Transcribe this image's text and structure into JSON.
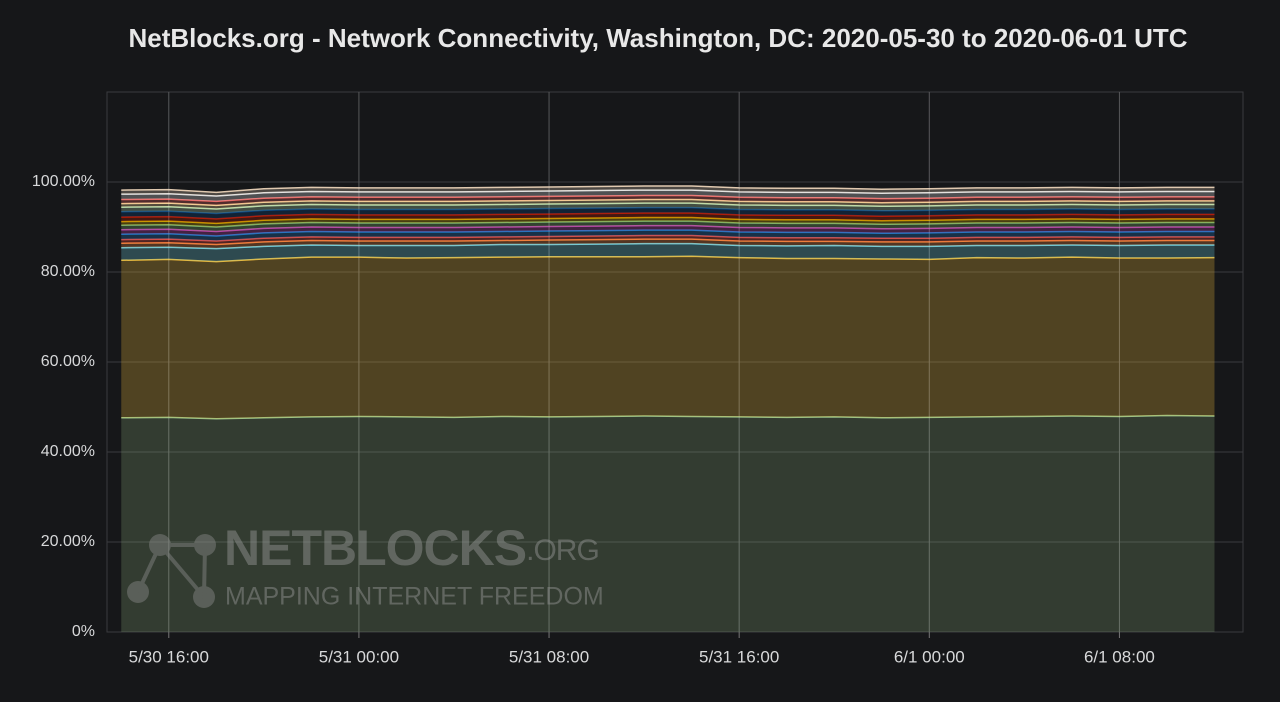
{
  "chart_data": {
    "type": "stacked_area",
    "title": "NetBlocks.org - Network Connectivity, Washington, DC: 2020-05-30 to 2020-06-01 UTC",
    "watermark": {
      "brand": "NETBLOCKS",
      "suffix": ".ORG",
      "tagline": "MAPPING INTERNET FREEDOM"
    },
    "x": [
      14,
      16,
      18,
      20,
      22,
      24,
      26,
      28,
      30,
      32,
      34,
      36,
      38,
      40,
      42,
      44,
      46,
      48,
      50,
      52,
      54,
      56,
      58,
      60
    ],
    "xlim": [
      13.4,
      61.2
    ],
    "xticks": [
      {
        "value": 16,
        "label": "5/30 16:00"
      },
      {
        "value": 24,
        "label": "5/31 00:00"
      },
      {
        "value": 32,
        "label": "5/31 08:00"
      },
      {
        "value": 40,
        "label": "5/31 16:00"
      },
      {
        "value": 48,
        "label": "6/1 00:00"
      },
      {
        "value": 56,
        "label": "6/1 08:00"
      }
    ],
    "ylim": [
      0,
      120
    ],
    "yticks": [
      {
        "value": 0,
        "label": "0%"
      },
      {
        "value": 20,
        "label": "20.00%"
      },
      {
        "value": 40,
        "label": "40.00%"
      },
      {
        "value": 60,
        "label": "60.00%"
      },
      {
        "value": 80,
        "label": "80.00%"
      },
      {
        "value": 100,
        "label": "100.00%"
      }
    ],
    "grid": true,
    "series": [
      {
        "color": "#9ac48a",
        "values": [
          47.6,
          47.7,
          47.4,
          47.6,
          47.8,
          47.9,
          47.8,
          47.7,
          47.9,
          47.8,
          47.9,
          48.0,
          47.9,
          47.8,
          47.7,
          47.8,
          47.6,
          47.7,
          47.8,
          47.9,
          48.0,
          47.9,
          48.1,
          48.0
        ]
      },
      {
        "color": "#eab839",
        "values": [
          35.0,
          35.1,
          34.9,
          35.3,
          35.5,
          35.4,
          35.3,
          35.5,
          35.4,
          35.6,
          35.5,
          35.4,
          35.6,
          35.4,
          35.3,
          35.2,
          35.3,
          35.1,
          35.4,
          35.2,
          35.3,
          35.2,
          35.0,
          35.2
        ]
      },
      {
        "color": "#6ed0e0",
        "values": [
          2.8,
          2.7,
          2.9,
          2.8,
          2.7,
          2.6,
          2.8,
          2.7,
          2.8,
          2.7,
          2.8,
          2.9,
          2.8,
          2.7,
          2.8,
          2.9,
          2.8,
          2.9,
          2.7,
          2.8,
          2.7,
          2.8,
          2.9,
          2.8
        ]
      },
      {
        "color": "#ef843c",
        "values": [
          1.0,
          1.0,
          0.9,
          1.0,
          1.0,
          1.0,
          1.0,
          1.0,
          0.9,
          1.0,
          1.0,
          1.0,
          1.0,
          1.0,
          1.0,
          0.9,
          1.0,
          1.0,
          1.0,
          1.0,
          1.0,
          1.0,
          1.0,
          1.0
        ]
      },
      {
        "color": "#e24d42",
        "values": [
          0.8,
          0.8,
          0.8,
          0.8,
          0.8,
          0.8,
          0.8,
          0.8,
          0.8,
          0.8,
          0.8,
          0.8,
          0.8,
          0.8,
          0.8,
          0.8,
          0.8,
          0.8,
          0.8,
          0.8,
          0.8,
          0.8,
          0.8,
          0.8
        ]
      },
      {
        "color": "#1f78c1",
        "values": [
          1.2,
          1.2,
          1.1,
          1.2,
          1.2,
          1.2,
          1.2,
          1.2,
          1.2,
          1.2,
          1.2,
          1.2,
          1.2,
          1.2,
          1.2,
          1.2,
          1.1,
          1.2,
          1.2,
          1.2,
          1.2,
          1.2,
          1.2,
          1.2
        ]
      },
      {
        "color": "#ba43a9",
        "values": [
          1.0,
          1.0,
          1.0,
          1.0,
          1.0,
          1.0,
          1.0,
          1.0,
          1.0,
          1.0,
          1.0,
          1.0,
          1.0,
          1.0,
          1.0,
          1.0,
          1.0,
          1.0,
          1.0,
          1.0,
          1.0,
          1.0,
          1.0,
          1.0
        ]
      },
      {
        "color": "#7eb26d",
        "values": [
          1.0,
          1.0,
          1.0,
          1.0,
          1.0,
          1.0,
          1.0,
          1.0,
          1.0,
          1.0,
          1.0,
          1.0,
          1.0,
          1.0,
          1.0,
          1.0,
          1.0,
          1.0,
          1.0,
          1.0,
          1.0,
          1.0,
          1.0,
          1.0
        ]
      },
      {
        "color": "#cca300",
        "values": [
          0.8,
          0.8,
          0.8,
          0.8,
          0.8,
          0.8,
          0.8,
          0.8,
          0.8,
          0.8,
          0.8,
          0.8,
          0.8,
          0.8,
          0.8,
          0.8,
          0.8,
          0.8,
          0.8,
          0.8,
          0.8,
          0.8,
          0.8,
          0.8
        ]
      },
      {
        "color": "#bf1b00",
        "values": [
          1.0,
          1.0,
          1.0,
          1.0,
          1.0,
          1.0,
          1.0,
          1.0,
          1.0,
          1.0,
          1.0,
          1.0,
          1.0,
          1.0,
          1.0,
          1.0,
          1.0,
          1.0,
          1.0,
          1.0,
          1.0,
          1.0,
          1.0,
          1.0
        ]
      },
      {
        "color": "#0a437c",
        "values": [
          1.2,
          1.2,
          1.2,
          1.2,
          1.2,
          1.2,
          1.2,
          1.2,
          1.2,
          1.2,
          1.2,
          1.2,
          1.2,
          1.2,
          1.2,
          1.2,
          1.2,
          1.2,
          1.2,
          1.2,
          1.2,
          1.2,
          1.2,
          1.2
        ]
      },
      {
        "color": "#b7dbab",
        "values": [
          1.0,
          1.0,
          1.0,
          1.0,
          1.0,
          1.0,
          1.0,
          1.0,
          1.0,
          1.0,
          1.0,
          1.0,
          1.0,
          1.0,
          1.0,
          1.0,
          1.0,
          1.0,
          1.0,
          1.0,
          1.0,
          1.0,
          1.0,
          1.0
        ]
      },
      {
        "color": "#f4d598",
        "values": [
          0.8,
          0.8,
          0.8,
          0.8,
          0.8,
          0.8,
          0.8,
          0.8,
          0.8,
          0.8,
          0.8,
          0.8,
          0.8,
          0.8,
          0.8,
          0.8,
          0.8,
          0.8,
          0.8,
          0.8,
          0.8,
          0.8,
          0.8,
          0.8
        ]
      },
      {
        "color": "#ea6460",
        "values": [
          0.9,
          0.9,
          0.9,
          0.9,
          0.9,
          0.9,
          0.9,
          0.9,
          0.9,
          0.9,
          0.9,
          0.9,
          0.9,
          0.9,
          0.9,
          0.9,
          0.9,
          0.9,
          0.9,
          0.9,
          0.9,
          0.9,
          0.9,
          0.9
        ]
      },
      {
        "color": "#e5e5e5",
        "values": [
          1.2,
          1.2,
          1.2,
          1.2,
          1.2,
          1.2,
          1.2,
          1.2,
          1.2,
          1.2,
          1.2,
          1.2,
          1.2,
          1.2,
          1.2,
          1.2,
          1.2,
          1.2,
          1.2,
          1.2,
          1.2,
          1.2,
          1.2,
          1.2
        ]
      },
      {
        "color": "#e0c9b0",
        "values": [
          0.9,
          0.9,
          0.8,
          0.9,
          0.9,
          0.9,
          0.9,
          0.9,
          0.9,
          0.9,
          0.9,
          0.9,
          0.9,
          0.9,
          0.9,
          0.9,
          0.9,
          0.9,
          0.9,
          0.9,
          0.9,
          0.9,
          0.9,
          0.9
        ]
      }
    ]
  }
}
